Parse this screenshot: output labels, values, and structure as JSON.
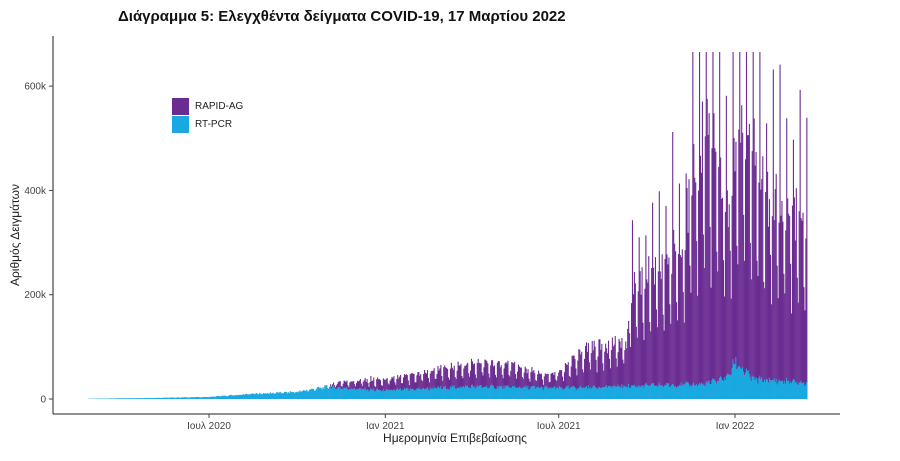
{
  "chart_data": {
    "type": "bar",
    "title": "Διάγραμμα 5: Ελεγχθέντα δείγματα COVID-19, 17 Μαρτίου 2022",
    "xlabel": "Ημερομηνία Επιβεβαίωσης",
    "ylabel": "Αριθμός Δειγμάτων",
    "stacked": true,
    "x_range": [
      "2020-02-26",
      "2022-03-17"
    ],
    "ylim": [
      0,
      680000
    ],
    "y_ticks": [
      0,
      200000,
      400000,
      600000
    ],
    "y_tick_labels": [
      "0",
      "200k",
      "400k",
      "600k"
    ],
    "x_ticks": [
      "2020-07-01",
      "2021-01-01",
      "2021-07-01",
      "2022-01-01"
    ],
    "x_tick_labels": [
      "Ιουλ 2020",
      "Ιαν 2021",
      "Ιουλ 2021",
      "Ιαν 2022"
    ],
    "legend_position": "top-left",
    "grid": false,
    "series": [
      {
        "name": "RAPID-AG",
        "color": "#6a2c91",
        "weekly_peak_daily_values": [
          {
            "date": "2020-02-26",
            "value": 0
          },
          {
            "date": "2020-11-01",
            "value": 0
          },
          {
            "date": "2020-11-15",
            "value": 12000
          },
          {
            "date": "2020-12-15",
            "value": 20000
          },
          {
            "date": "2021-01-15",
            "value": 25000
          },
          {
            "date": "2021-03-01",
            "value": 40000
          },
          {
            "date": "2021-04-15",
            "value": 50000
          },
          {
            "date": "2021-05-15",
            "value": 45000
          },
          {
            "date": "2021-06-15",
            "value": 25000
          },
          {
            "date": "2021-07-01",
            "value": 30000
          },
          {
            "date": "2021-08-01",
            "value": 85000
          },
          {
            "date": "2021-09-10",
            "value": 90000
          },
          {
            "date": "2021-09-15",
            "value": 215000
          },
          {
            "date": "2021-10-15",
            "value": 245000
          },
          {
            "date": "2021-11-10",
            "value": 330000
          },
          {
            "date": "2021-12-01",
            "value": 560000
          },
          {
            "date": "2021-12-25",
            "value": 360000
          },
          {
            "date": "2022-01-10",
            "value": 540000
          },
          {
            "date": "2022-02-01",
            "value": 390000
          },
          {
            "date": "2022-03-17",
            "value": 350000
          }
        ]
      },
      {
        "name": "RT-PCR",
        "color": "#1aa8e0",
        "weekly_peak_daily_values": [
          {
            "date": "2020-02-26",
            "value": 500
          },
          {
            "date": "2020-05-01",
            "value": 2000
          },
          {
            "date": "2020-07-01",
            "value": 4000
          },
          {
            "date": "2020-08-15",
            "value": 10000
          },
          {
            "date": "2020-10-01",
            "value": 14000
          },
          {
            "date": "2020-11-01",
            "value": 24000
          },
          {
            "date": "2021-01-01",
            "value": 17000
          },
          {
            "date": "2021-04-01",
            "value": 25000
          },
          {
            "date": "2021-07-01",
            "value": 22000
          },
          {
            "date": "2021-10-01",
            "value": 27000
          },
          {
            "date": "2021-12-01",
            "value": 30000
          },
          {
            "date": "2021-12-25",
            "value": 45000
          },
          {
            "date": "2022-01-01",
            "value": 75000
          },
          {
            "date": "2022-01-20",
            "value": 40000
          },
          {
            "date": "2022-03-17",
            "value": 32000
          }
        ]
      }
    ]
  }
}
